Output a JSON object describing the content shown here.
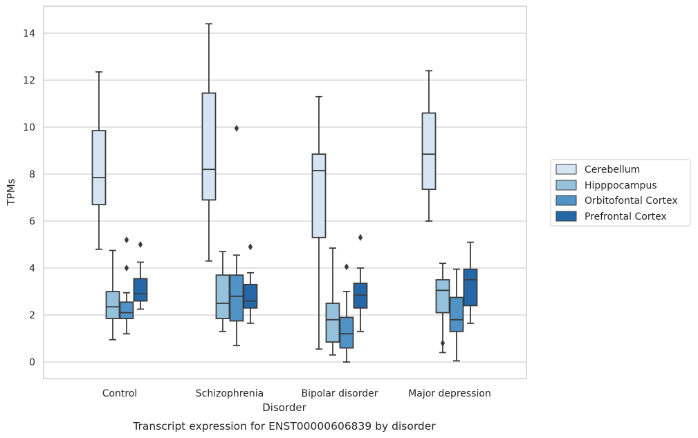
{
  "chart_data": {
    "type": "boxplot",
    "caption": "Transcript expression for ENST00000606839 by disorder",
    "xlabel": "Disorder",
    "ylabel": "TPMs",
    "ylim": [
      -0.7,
      15.1
    ],
    "yticks": [
      0,
      2,
      4,
      6,
      8,
      10,
      12,
      14
    ],
    "grid": true,
    "legend_position": "right",
    "categories": [
      "Control",
      "Schizophrenia",
      "Bipolar disorder",
      "Major depression"
    ],
    "series": [
      {
        "name": "Cerebellum",
        "color": "#d6e5f3",
        "boxes": [
          {
            "whislo": 4.8,
            "q1": 6.7,
            "med": 7.85,
            "q3": 9.85,
            "whishi": 12.35,
            "fliers": []
          },
          {
            "whislo": 4.3,
            "q1": 6.9,
            "med": 8.2,
            "q3": 11.45,
            "whishi": 14.4,
            "fliers": []
          },
          {
            "whislo": 0.55,
            "q1": 5.3,
            "med": 8.15,
            "q3": 8.85,
            "whishi": 11.3,
            "fliers": []
          },
          {
            "whislo": 6.0,
            "q1": 7.35,
            "med": 8.85,
            "q3": 10.6,
            "whishi": 12.4,
            "fliers": []
          }
        ]
      },
      {
        "name": "Hipppocampus",
        "color": "#96c1dc",
        "boxes": [
          {
            "whislo": 0.95,
            "q1": 1.85,
            "med": 2.35,
            "q3": 3.0,
            "whishi": 4.75,
            "fliers": []
          },
          {
            "whislo": 1.3,
            "q1": 1.85,
            "med": 2.5,
            "q3": 3.7,
            "whishi": 4.7,
            "fliers": []
          },
          {
            "whislo": 0.3,
            "q1": 0.85,
            "med": 1.8,
            "q3": 2.5,
            "whishi": 4.85,
            "fliers": []
          },
          {
            "whislo": 0.4,
            "q1": 2.1,
            "med": 3.05,
            "q3": 3.5,
            "whishi": 4.2,
            "fliers": [
              0.8
            ]
          }
        ]
      },
      {
        "name": "Orbitofontal Cortex",
        "color": "#5093c6",
        "boxes": [
          {
            "whislo": 1.2,
            "q1": 1.85,
            "med": 2.1,
            "q3": 2.55,
            "whishi": 2.95,
            "fliers": [
              5.2,
              4.0
            ]
          },
          {
            "whislo": 0.7,
            "q1": 1.75,
            "med": 2.8,
            "q3": 3.7,
            "whishi": 4.55,
            "fliers": [
              9.95
            ]
          },
          {
            "whislo": 0.0,
            "q1": 0.6,
            "med": 1.2,
            "q3": 1.9,
            "whishi": 3.0,
            "fliers": [
              4.05
            ]
          },
          {
            "whislo": 0.05,
            "q1": 1.3,
            "med": 1.8,
            "q3": 2.75,
            "whishi": 3.95,
            "fliers": []
          }
        ]
      },
      {
        "name": "Prefrontal Cortex",
        "color": "#2568a9",
        "boxes": [
          {
            "whislo": 2.25,
            "q1": 2.6,
            "med": 2.9,
            "q3": 3.55,
            "whishi": 4.25,
            "fliers": [
              5.0
            ]
          },
          {
            "whislo": 1.65,
            "q1": 2.3,
            "med": 2.6,
            "q3": 3.3,
            "whishi": 3.8,
            "fliers": [
              4.9
            ]
          },
          {
            "whislo": 1.3,
            "q1": 2.3,
            "med": 2.85,
            "q3": 3.35,
            "whishi": 4.0,
            "fliers": [
              5.3
            ]
          },
          {
            "whislo": 1.65,
            "q1": 2.4,
            "med": 3.5,
            "q3": 3.95,
            "whishi": 5.1,
            "fliers": []
          }
        ]
      }
    ]
  }
}
